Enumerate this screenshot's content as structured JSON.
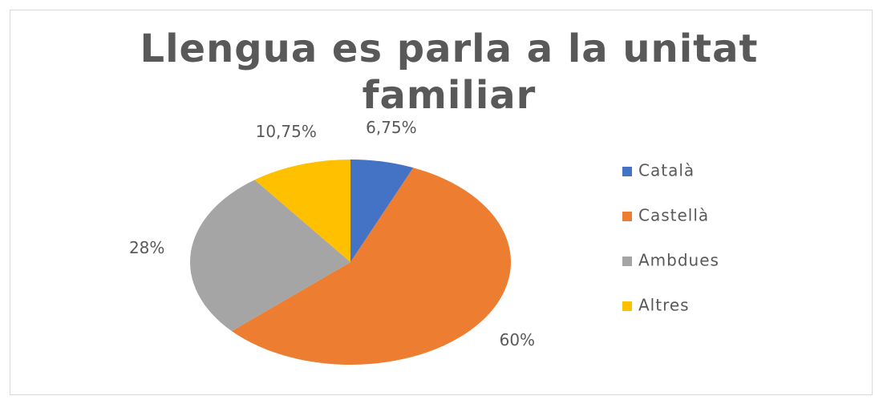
{
  "chart_data": {
    "type": "pie",
    "title": "Llengua es parla  a la unitat familiar",
    "categories": [
      "Català",
      "Castellà",
      "Ambdues",
      "Altres"
    ],
    "values": [
      6.75,
      60,
      28,
      10.75
    ],
    "value_labels": [
      "6,75%",
      "60%",
      "28%",
      "10,75%"
    ],
    "colors": [
      "#4472c4",
      "#ed7d31",
      "#a5a5a5",
      "#ffc000"
    ],
    "legend": "right"
  }
}
